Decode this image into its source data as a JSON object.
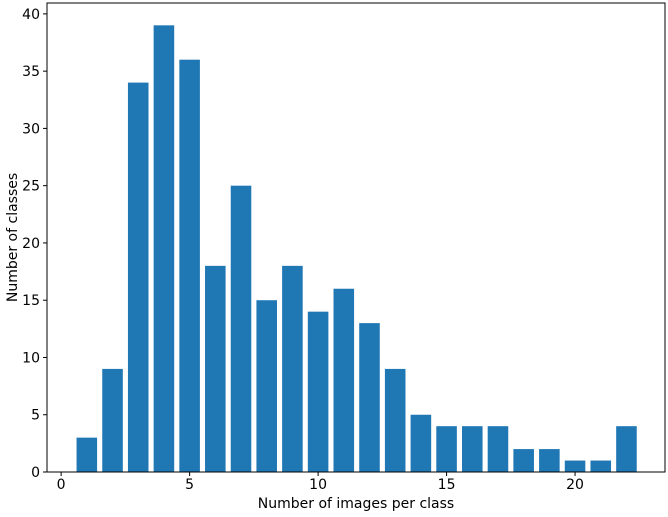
{
  "chart_data": {
    "type": "bar",
    "title": "",
    "xlabel": "Number of images per class",
    "ylabel": "Number of classes",
    "x": [
      1,
      2,
      3,
      4,
      5,
      6,
      7,
      8,
      9,
      10,
      11,
      12,
      13,
      14,
      15,
      16,
      17,
      18,
      19,
      20,
      21,
      22
    ],
    "values": [
      3,
      9,
      34,
      39,
      36,
      18,
      25,
      15,
      18,
      14,
      16,
      13,
      9,
      5,
      4,
      4,
      4,
      2,
      2,
      1,
      1,
      4
    ],
    "xticks": [
      0,
      5,
      10,
      15,
      20
    ],
    "yticks": [
      0,
      5,
      10,
      15,
      20,
      25,
      30,
      35,
      40
    ],
    "xlim": [
      -0.55,
      23.5
    ],
    "ylim": [
      0,
      40.95
    ],
    "bar_width": 0.8,
    "bar_color": "#1f77b4",
    "axis_color": "#000000",
    "grid": false,
    "legend": null
  }
}
